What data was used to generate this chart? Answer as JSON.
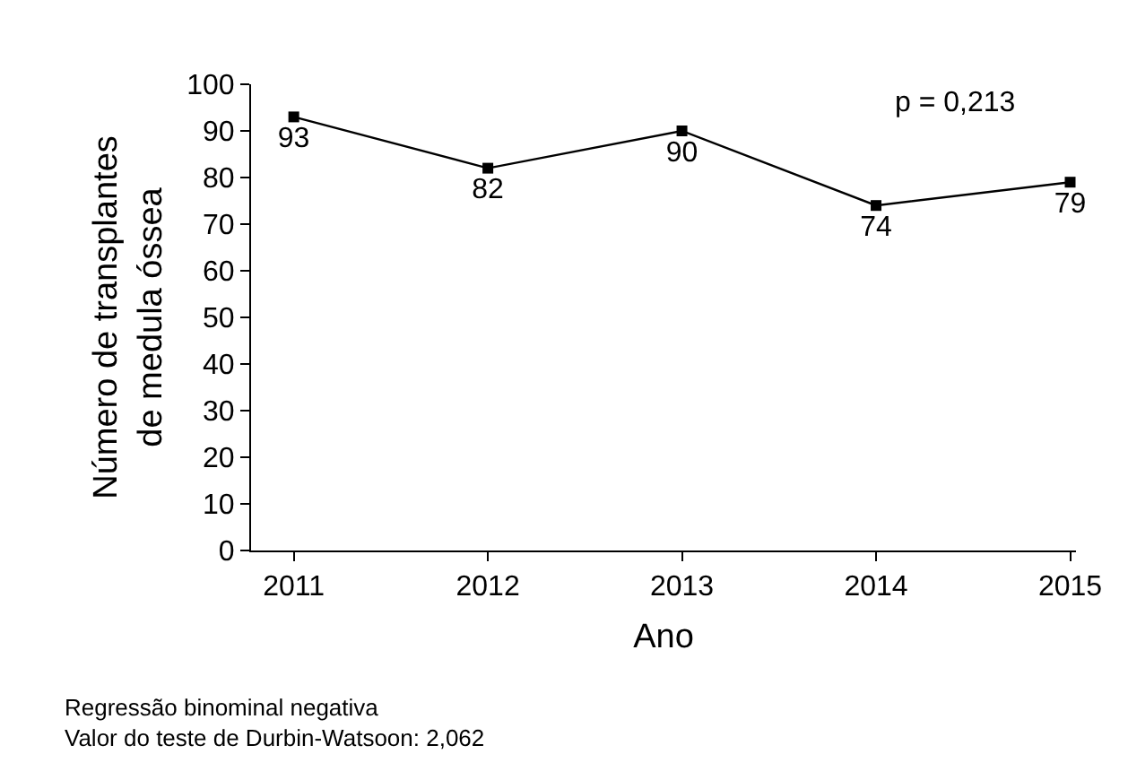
{
  "chart_data": {
    "type": "line",
    "categories": [
      "2011",
      "2012",
      "2013",
      "2014",
      "2015"
    ],
    "values": [
      93,
      82,
      90,
      74,
      79
    ],
    "color": "#000000",
    "xlabel": "Ano",
    "ylabel": "Número de transplantes\nde medula óssea",
    "ylim": [
      0,
      100
    ],
    "yticks": [
      0,
      10,
      20,
      30,
      40,
      50,
      60,
      70,
      80,
      90,
      100
    ],
    "data_labels": true,
    "marker": "square",
    "line_style": "solid",
    "legend": false,
    "annotations": [
      "p = 0,213",
      "Regressão binominal negativa\nValor do teste de Durbin-Watsoon: 2,062"
    ]
  }
}
